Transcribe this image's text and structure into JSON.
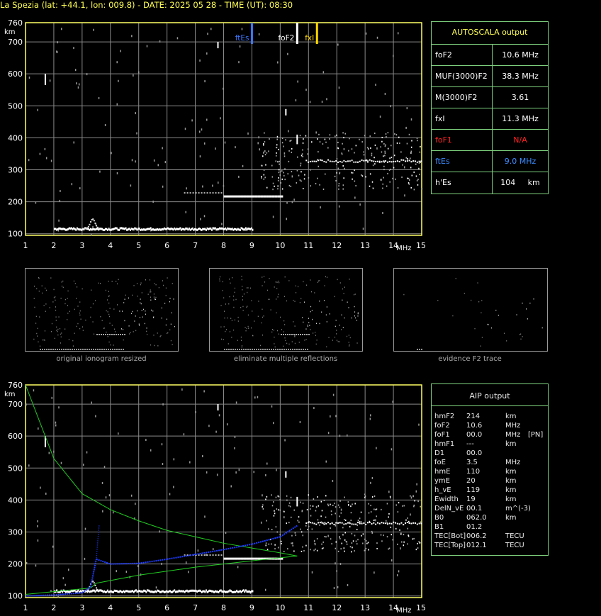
{
  "title": "La Spezia (lat: +44.1, lon: 009.8) - DATE: 2025 05 28 - TIME (UT): 08:30",
  "colors": {
    "frame": "#ffff66",
    "grid": "#8a8a8a",
    "box": "#7fd37f",
    "ftEs": "#3c78ff",
    "foF2": "#ffffff",
    "fxI": "#ffd700",
    "red": "#ff2020",
    "blue": "#3c8cff",
    "profile": "#1f3cff",
    "model": "#22cc22"
  },
  "top_chart": {
    "ylabel": "km",
    "xunit": "MHz",
    "yticks": [
      100,
      200,
      300,
      400,
      500,
      600,
      700,
      760
    ],
    "xticks": [
      1,
      2,
      3,
      4,
      5,
      6,
      7,
      8,
      9,
      10,
      11,
      12,
      13,
      14,
      15
    ],
    "markers": [
      {
        "label": "ftEs",
        "freq": 9.0
      },
      {
        "label": "foF2",
        "freq": 10.6
      },
      {
        "label": "fxI",
        "freq": 11.3
      }
    ]
  },
  "bottom_chart": {
    "ylabel": "km",
    "xunit": "MHz",
    "yticks": [
      100,
      200,
      300,
      400,
      500,
      600,
      700,
      760
    ],
    "xticks": [
      1,
      2,
      3,
      4,
      5,
      6,
      7,
      8,
      9,
      10,
      11,
      12,
      13,
      14,
      15
    ]
  },
  "chart_data": [
    {
      "type": "scatter",
      "title": "",
      "xlabel": "MHz",
      "ylabel": "km",
      "xlim": [
        1,
        15
      ],
      "ylim": [
        95,
        760
      ],
      "series": [
        {
          "values": [
            [
              2,
              110
            ],
            [
              3,
              115
            ],
            [
              3.3,
              125
            ],
            [
              3.5,
              122
            ],
            [
              4,
              117
            ],
            [
              5,
              117
            ],
            [
              6,
              117
            ],
            [
              7,
              117
            ],
            [
              8,
              117
            ],
            [
              9,
              117
            ],
            [
              7,
              225
            ],
            [
              8,
              222
            ],
            [
              9,
              220
            ],
            [
              9.8,
              222
            ],
            [
              10,
              300
            ],
            [
              10.5,
              340
            ],
            [
              10.6,
              400
            ],
            [
              11,
              330
            ],
            [
              12,
              320
            ],
            [
              13,
              320
            ],
            [
              14,
              320
            ],
            [
              15,
              320
            ]
          ]
        }
      ]
    },
    {
      "type": "line",
      "title": "",
      "xlabel": "MHz",
      "ylabel": "km",
      "xlim": [
        1,
        15
      ],
      "ylim": [
        95,
        760
      ],
      "series": [
        {
          "values": [
            [
              1,
              100
            ],
            [
              2,
              103
            ],
            [
              3,
              110
            ],
            [
              3.3,
              128
            ],
            [
              3.5,
              215
            ],
            [
              4,
              200
            ],
            [
              5,
              202
            ],
            [
              6,
              215
            ],
            [
              7,
              230
            ],
            [
              8,
              245
            ],
            [
              9,
              262
            ],
            [
              10,
              285
            ],
            [
              10.6,
              320
            ]
          ]
        },
        {
          "values": [
            [
              1,
              760
            ],
            [
              2,
              530
            ],
            [
              3,
              420
            ],
            [
              4,
              370
            ],
            [
              5,
              335
            ],
            [
              6,
              305
            ],
            [
              7,
              285
            ],
            [
              8,
              265
            ],
            [
              9,
              250
            ],
            [
              10,
              235
            ],
            [
              10.6,
              225
            ],
            [
              9,
              210
            ],
            [
              7,
              190
            ],
            [
              5,
              165
            ],
            [
              3.5,
              140
            ],
            [
              3.3,
              125
            ],
            [
              1,
              105
            ]
          ]
        }
      ]
    }
  ],
  "thumbs": [
    {
      "caption": "original ionogram resized"
    },
    {
      "caption": "eliminate multiple reflections"
    },
    {
      "caption": "evidence F2 trace"
    }
  ],
  "autoscala": {
    "header": "AUTOSCALA output",
    "rows": [
      {
        "key": "foF2",
        "value": "10.6 MHz",
        "color": "#ffffff"
      },
      {
        "key": "MUF(3000)F2",
        "value": "38.3 MHz",
        "color": "#ffffff"
      },
      {
        "key": "M(3000)F2",
        "value": "3.61",
        "color": "#ffffff"
      },
      {
        "key": "fxI",
        "value": "11.3 MHz",
        "color": "#ffffff"
      },
      {
        "key": "foF1",
        "value": "N/A",
        "color": "#ff2020"
      },
      {
        "key": "ftEs",
        "value": "9.0 MHz",
        "color": "#3c8cff"
      },
      {
        "key": "h'Es",
        "value": "104     km",
        "color": "#ffffff"
      }
    ]
  },
  "aip": {
    "header": "AIP output",
    "rows": [
      {
        "k": "hmF2",
        "v": "214",
        "u": "km",
        "x": ""
      },
      {
        "k": "foF2",
        "v": "10.6",
        "u": "MHz",
        "x": ""
      },
      {
        "k": "foF1",
        "v": "00.0",
        "u": "MHz",
        "x": "[PN]"
      },
      {
        "k": "hmF1",
        "v": "---",
        "u": "km",
        "x": ""
      },
      {
        "k": "D1",
        "v": "00.0",
        "u": "",
        "x": ""
      },
      {
        "k": "foE",
        "v": "3.5",
        "u": "MHz",
        "x": ""
      },
      {
        "k": "hmE",
        "v": "110",
        "u": "km",
        "x": ""
      },
      {
        "k": "ymE",
        "v": "20",
        "u": "km",
        "x": ""
      },
      {
        "k": "h_vE",
        "v": "119",
        "u": "km",
        "x": ""
      },
      {
        "k": "Ewidth",
        "v": "19",
        "u": "km",
        "x": ""
      },
      {
        "k": "DelN_vE",
        "v": "00.1",
        "u": "m^(-3)",
        "x": ""
      },
      {
        "k": "B0",
        "v": "062.0",
        "u": "km",
        "x": ""
      },
      {
        "k": "B1",
        "v": "01.2",
        "u": "",
        "x": ""
      },
      {
        "k": "TEC[Bot]",
        "v": "006.2",
        "u": "TECU",
        "x": ""
      },
      {
        "k": "TEC[Top]",
        "v": "012.1",
        "u": "TECU",
        "x": ""
      }
    ]
  }
}
